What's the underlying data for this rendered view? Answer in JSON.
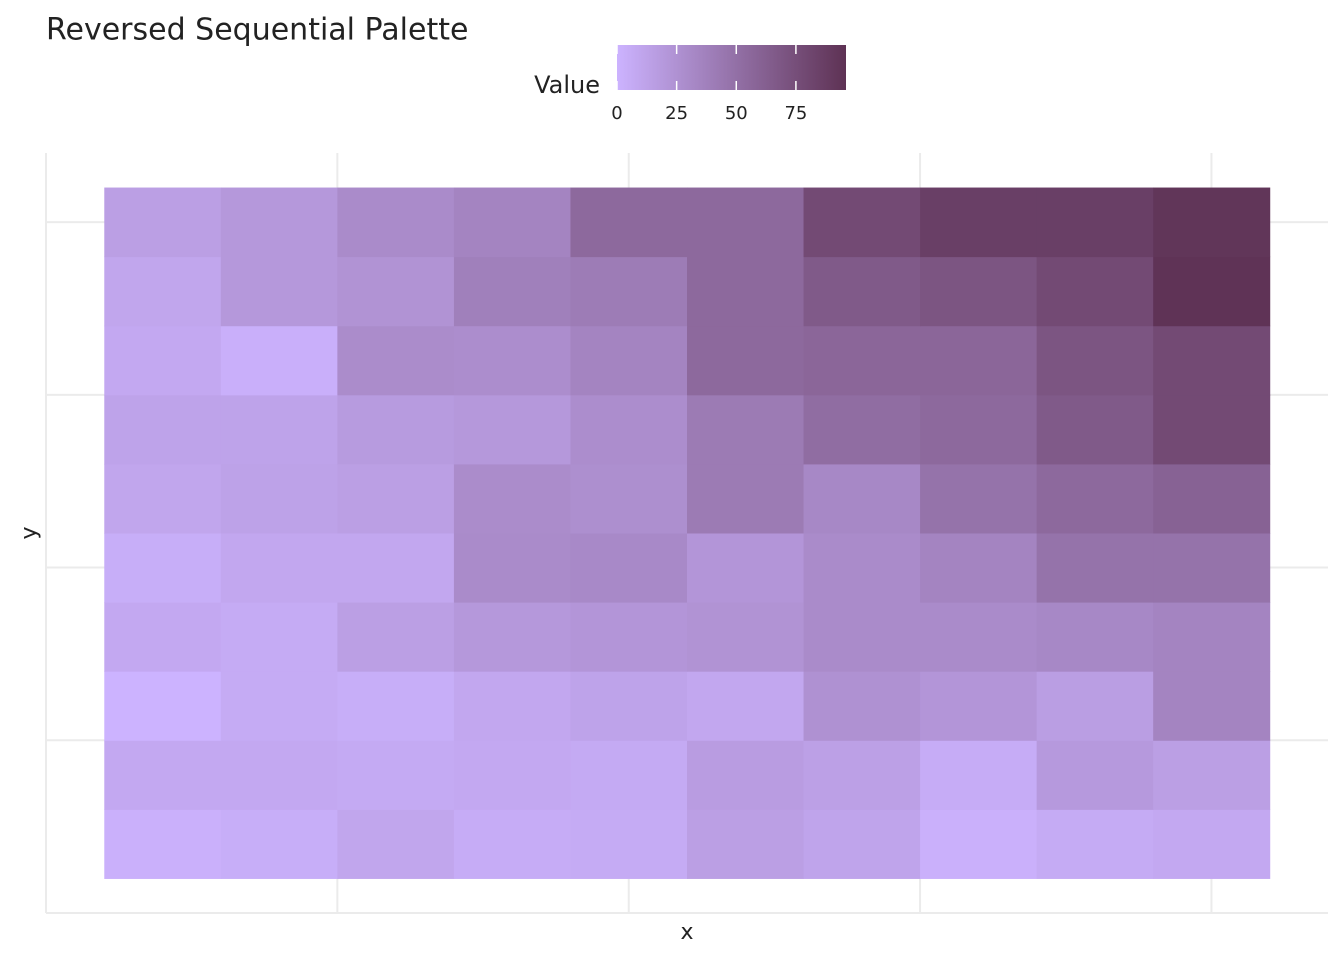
{
  "chart_data": {
    "type": "heatmap",
    "title": "Reversed Sequential Palette",
    "x_label": "x",
    "y_label": "y",
    "legend_title": "Value",
    "x": [
      1,
      2,
      3,
      4,
      5,
      6,
      7,
      8,
      9,
      10
    ],
    "y": [
      1,
      2,
      3,
      4,
      5,
      6,
      7,
      8,
      9,
      10
    ],
    "z": [
      [
        2,
        4,
        10,
        5,
        6,
        15,
        11,
        2,
        6,
        8
      ],
      [
        8,
        8,
        7,
        8,
        7,
        17,
        14,
        5,
        19,
        15
      ],
      [
        0,
        6,
        4,
        9,
        12,
        9,
        25,
        22,
        16,
        35
      ],
      [
        8,
        6,
        15,
        20,
        22,
        24,
        30,
        30,
        32,
        35
      ],
      [
        4,
        9,
        9,
        30,
        31,
        22,
        30,
        35,
        48,
        48
      ],
      [
        10,
        13,
        15,
        29,
        27,
        42,
        32,
        48,
        55,
        60
      ],
      [
        12,
        12,
        18,
        20,
        28,
        42,
        52,
        55,
        66,
        78
      ],
      [
        8,
        3,
        29,
        28,
        35,
        55,
        57,
        57,
        70,
        78
      ],
      [
        10,
        20,
        24,
        38,
        41,
        55,
        66,
        70,
        78,
        95
      ],
      [
        15,
        20,
        30,
        35,
        55,
        55,
        78,
        86,
        86,
        93
      ]
    ],
    "xlim": [
      0,
      11
    ],
    "ylim": [
      0,
      11
    ],
    "xticks": [
      2.5,
      5,
      7.5,
      10
    ],
    "yticks": [
      2.5,
      5,
      7.5,
      10
    ],
    "tick_labels": false,
    "grid": true,
    "colorscale": {
      "low": "#ccb3ff",
      "high": "#5e3254",
      "limits": [
        0,
        96
      ],
      "ticks": [
        0,
        25,
        50,
        75
      ]
    },
    "legend_position": "top"
  }
}
